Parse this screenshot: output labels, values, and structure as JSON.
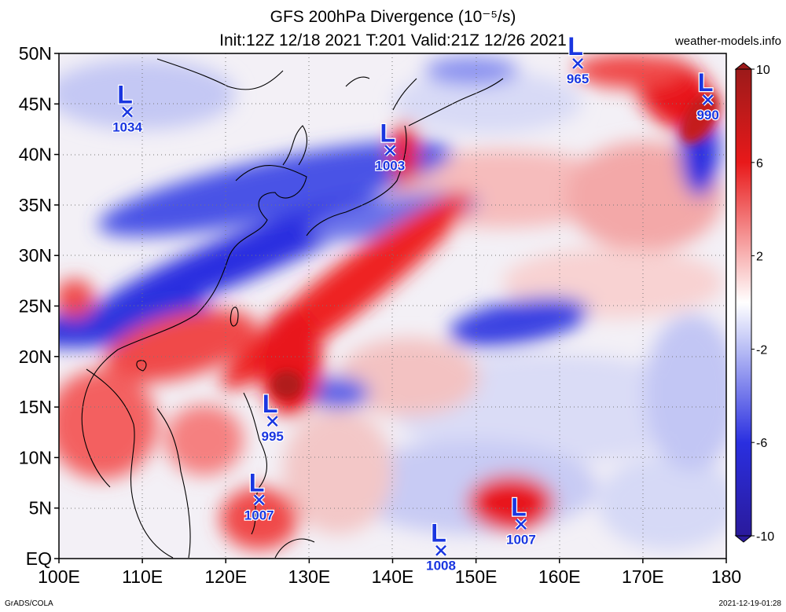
{
  "title_line1": "GFS 200hPa Divergence (10⁻⁵/s)",
  "title_line2": "Init:12Z 12/18 2021 T:201 Valid:21Z 12/26 2021",
  "site": "weather-models.info",
  "footer_left": "GrADS/COLA",
  "footer_right": "2021-12-19-01:28",
  "lat_labels": [
    "50N",
    "45N",
    "40N",
    "35N",
    "30N",
    "25N",
    "20N",
    "15N",
    "10N",
    "5N",
    "EQ"
  ],
  "lon_labels": [
    "100E",
    "110E",
    "120E",
    "130E",
    "140E",
    "150E",
    "160E",
    "170E",
    "180"
  ],
  "colorbar": {
    "ticks": [
      "10",
      "6",
      "2",
      "-2",
      "-6",
      "-10"
    ],
    "colors": [
      "#9c1a1a",
      "#c41a1a",
      "#e8191a",
      "#f04848",
      "#f58080",
      "#f8b4b4",
      "#fbdcdc",
      "#ffffff",
      "#dde0fb",
      "#b8bdf5",
      "#8890f0",
      "#5a62e8",
      "#2a2fe0",
      "#1a1acc",
      "#2a1a9c"
    ]
  },
  "pressure_centers": [
    {
      "label": "L",
      "value": "1034",
      "lat": 44.2,
      "lon": 108.2
    },
    {
      "label": "L",
      "value": "1003",
      "lat": 40.4,
      "lon": 139.7
    },
    {
      "label": "L",
      "value": "965",
      "lat": 49.0,
      "lon": 162.2
    },
    {
      "label": "L",
      "value": "990",
      "lat": 45.4,
      "lon": 177.8
    },
    {
      "label": "L",
      "value": "995",
      "lat": 13.6,
      "lon": 125.6
    },
    {
      "label": "L",
      "value": "1007",
      "lat": 5.8,
      "lon": 124.0
    },
    {
      "label": "L",
      "value": "1008",
      "lat": 0.8,
      "lon": 145.8
    },
    {
      "label": "L",
      "value": "1007",
      "lat": 3.4,
      "lon": 155.4
    }
  ],
  "colors": {
    "center_blue": "#1a36e0"
  }
}
